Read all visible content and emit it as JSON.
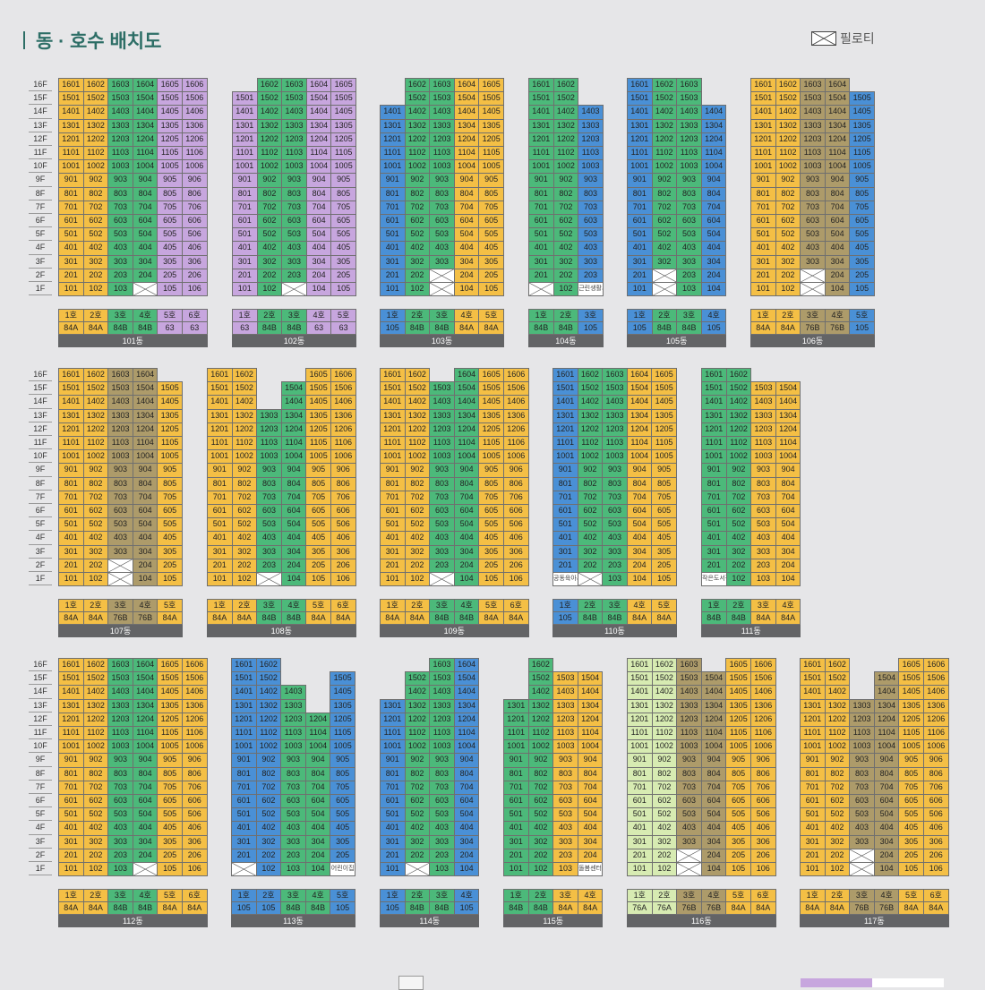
{
  "title": "동 · 호수 배치도",
  "legend": {
    "pilotis_label": "필로티",
    "pilotis_icon": "crossed-box-icon"
  },
  "colors": {
    "Y": "#f4bf45",
    "G": "#4cb97a",
    "B": "#4a90d6",
    "P": "#c7a6de",
    "K": "#ad9b6a",
    "L": "#d7ebb2"
  },
  "floors": [
    "16F",
    "15F",
    "14F",
    "13F",
    "12F",
    "11F",
    "10F",
    "9F",
    "8F",
    "7F",
    "6F",
    "5F",
    "4F",
    "3F",
    "2F",
    "1F"
  ],
  "buildings": [
    {
      "name": "101동",
      "cols": 6,
      "lines": [
        {
          "label": "1호",
          "type": "84A",
          "color": "Y",
          "top": 16
        },
        {
          "label": "2호",
          "type": "84A",
          "color": "Y",
          "top": 16
        },
        {
          "label": "3호",
          "type": "84B",
          "color": "G",
          "top": 16
        },
        {
          "label": "4호",
          "type": "84B",
          "color": "G",
          "top": 16
        },
        {
          "label": "5호",
          "type": "63",
          "color": "P",
          "top": 16
        },
        {
          "label": "6호",
          "type": "63",
          "color": "P",
          "top": 16
        }
      ],
      "special": {}
    },
    {
      "name": "102동",
      "cols": 5,
      "lines": [
        {
          "label": "1호",
          "type": "63",
          "color": "P",
          "top": 15
        },
        {
          "label": "2호",
          "type": "84B",
          "color": "G",
          "top": 16
        },
        {
          "label": "3호",
          "type": "84B",
          "color": "G",
          "top": 16
        },
        {
          "label": "4호",
          "type": "63",
          "color": "P",
          "top": 16
        },
        {
          "label": "5호",
          "type": "63",
          "color": "P",
          "top": 16
        }
      ],
      "special": {}
    },
    {
      "name": "103동",
      "cols": 5,
      "lines": [
        {
          "label": "1호",
          "type": "105",
          "color": "B",
          "top": 14
        },
        {
          "label": "2호",
          "type": "84B",
          "color": "G",
          "top": 16
        },
        {
          "label": "3호",
          "type": "84B",
          "color": "G",
          "top": 16
        },
        {
          "label": "4호",
          "type": "84A",
          "color": "Y",
          "top": 16
        },
        {
          "label": "5호",
          "type": "84A",
          "color": "Y",
          "top": 16
        }
      ],
      "special": {}
    },
    {
      "name": "104동",
      "cols": 3,
      "lines": [
        {
          "label": "1호",
          "type": "84B",
          "color": "G",
          "top": 16
        },
        {
          "label": "2호",
          "type": "84B",
          "color": "G",
          "top": 16
        },
        {
          "label": "3호",
          "type": "105",
          "color": "B",
          "top": 14
        }
      ],
      "special": {}
    },
    {
      "name": "105동",
      "cols": 4,
      "lines": [
        {
          "label": "1호",
          "type": "105",
          "color": "B",
          "top": 16
        },
        {
          "label": "2호",
          "type": "84B",
          "color": "G",
          "top": 16
        },
        {
          "label": "3호",
          "type": "84B",
          "color": "G",
          "top": 16
        },
        {
          "label": "4호",
          "type": "105",
          "color": "B",
          "top": 14
        }
      ],
      "special": {}
    },
    {
      "name": "106동",
      "cols": 5,
      "lines": [
        {
          "label": "1호",
          "type": "84A",
          "color": "Y",
          "top": 16
        },
        {
          "label": "2호",
          "type": "84A",
          "color": "Y",
          "top": 16
        },
        {
          "label": "3호",
          "type": "76B",
          "color": "K",
          "top": 16
        },
        {
          "label": "4호",
          "type": "76B",
          "color": "K",
          "top": 16
        },
        {
          "label": "5호",
          "type": "105",
          "color": "B",
          "top": 15
        }
      ],
      "special": {}
    },
    {
      "name": "107동",
      "cols": 5,
      "lines": [
        {
          "label": "1호",
          "type": "84A",
          "color": "Y",
          "top": 16
        },
        {
          "label": "2호",
          "type": "84A",
          "color": "Y",
          "top": 16
        },
        {
          "label": "3호",
          "type": "76B",
          "color": "K",
          "top": 16
        },
        {
          "label": "4호",
          "type": "76B",
          "color": "K",
          "top": 16
        },
        {
          "label": "5호",
          "type": "84A",
          "color": "Y",
          "top": 15
        }
      ],
      "special": {}
    },
    {
      "name": "108동",
      "cols": 6,
      "lines": [
        {
          "label": "1호",
          "type": "84A",
          "color": "Y",
          "top": 16
        },
        {
          "label": "2호",
          "type": "84A",
          "color": "Y",
          "top": 16
        },
        {
          "label": "3호",
          "type": "84B",
          "color": "G",
          "top": 13
        },
        {
          "label": "4호",
          "type": "84B",
          "color": "G",
          "top": 15
        },
        {
          "label": "5호",
          "type": "84A",
          "color": "Y",
          "top": 16
        },
        {
          "label": "6호",
          "type": "84A",
          "color": "Y",
          "top": 16
        }
      ],
      "special": {}
    },
    {
      "name": "109동",
      "cols": 6,
      "lines": [
        {
          "label": "1호",
          "type": "84A",
          "color": "Y",
          "top": 16
        },
        {
          "label": "2호",
          "type": "84A",
          "color": "Y",
          "top": 16
        },
        {
          "label": "3호",
          "type": "84B",
          "color": "G",
          "top": 15
        },
        {
          "label": "4호",
          "type": "84B",
          "color": "G",
          "top": 16
        },
        {
          "label": "5호",
          "type": "84A",
          "color": "Y",
          "top": 16
        },
        {
          "label": "6호",
          "type": "84A",
          "color": "Y",
          "top": 16
        }
      ],
      "special": {}
    },
    {
      "name": "110동",
      "cols": 5,
      "lines": [
        {
          "label": "1호",
          "type": "105",
          "color": "B",
          "top": 16
        },
        {
          "label": "2호",
          "type": "84B",
          "color": "G",
          "top": 16
        },
        {
          "label": "3호",
          "type": "84B",
          "color": "G",
          "top": 16
        },
        {
          "label": "4호",
          "type": "84A",
          "color": "Y",
          "top": 16
        },
        {
          "label": "5호",
          "type": "84A",
          "color": "Y",
          "top": 16
        }
      ],
      "special": {}
    },
    {
      "name": "111동",
      "cols": 4,
      "lines": [
        {
          "label": "1호",
          "type": "84B",
          "color": "G",
          "top": 16
        },
        {
          "label": "2호",
          "type": "84B",
          "color": "G",
          "top": 16
        },
        {
          "label": "3호",
          "type": "84A",
          "color": "Y",
          "top": 15
        },
        {
          "label": "4호",
          "type": "84A",
          "color": "Y",
          "top": 15
        }
      ],
      "special": {}
    },
    {
      "name": "112동",
      "cols": 6,
      "lines": [
        {
          "label": "1호",
          "type": "84A",
          "color": "Y",
          "top": 16
        },
        {
          "label": "2호",
          "type": "84A",
          "color": "Y",
          "top": 16
        },
        {
          "label": "3호",
          "type": "84B",
          "color": "G",
          "top": 16
        },
        {
          "label": "4호",
          "type": "84B",
          "color": "G",
          "top": 16
        },
        {
          "label": "5호",
          "type": "84A",
          "color": "Y",
          "top": 16
        },
        {
          "label": "6호",
          "type": "84A",
          "color": "Y",
          "top": 16
        }
      ],
      "special": {}
    },
    {
      "name": "113동",
      "cols": 5,
      "lines": [
        {
          "label": "1호",
          "type": "105",
          "color": "B",
          "top": 16
        },
        {
          "label": "2호",
          "type": "105",
          "color": "B",
          "top": 16
        },
        {
          "label": "3호",
          "type": "84B",
          "color": "G",
          "top": 14
        },
        {
          "label": "4호",
          "type": "84B",
          "color": "G",
          "top": 12
        },
        {
          "label": "5호",
          "type": "105",
          "color": "B",
          "top": 15
        }
      ],
      "special": {}
    },
    {
      "name": "114동",
      "cols": 4,
      "lines": [
        {
          "label": "1호",
          "type": "105",
          "color": "B",
          "top": 13
        },
        {
          "label": "2호",
          "type": "84B",
          "color": "G",
          "top": 15
        },
        {
          "label": "3호",
          "type": "84B",
          "color": "G",
          "top": 16
        },
        {
          "label": "4호",
          "type": "105",
          "color": "B",
          "top": 16
        }
      ],
      "special": {}
    },
    {
      "name": "115동",
      "cols": 4,
      "lines": [
        {
          "label": "1호",
          "type": "84B",
          "color": "G",
          "top": 13
        },
        {
          "label": "2호",
          "type": "84B",
          "color": "G",
          "top": 16
        },
        {
          "label": "3호",
          "type": "84A",
          "color": "Y",
          "top": 15
        },
        {
          "label": "4호",
          "type": "84A",
          "color": "Y",
          "top": 15
        }
      ],
      "special": {}
    },
    {
      "name": "116동",
      "cols": 6,
      "lines": [
        {
          "label": "1호",
          "type": "76A",
          "color": "L",
          "top": 16
        },
        {
          "label": "2호",
          "type": "76A",
          "color": "L",
          "top": 16
        },
        {
          "label": "3호",
          "type": "76B",
          "color": "K",
          "top": 16
        },
        {
          "label": "4호",
          "type": "76B",
          "color": "K",
          "top": 15
        },
        {
          "label": "5호",
          "type": "84A",
          "color": "Y",
          "top": 16
        },
        {
          "label": "6호",
          "type": "84A",
          "color": "Y",
          "top": 16
        }
      ],
      "special": {}
    },
    {
      "name": "117동",
      "cols": 6,
      "lines": [
        {
          "label": "1호",
          "type": "84A",
          "color": "Y",
          "top": 16
        },
        {
          "label": "2호",
          "type": "84A",
          "color": "Y",
          "top": 16
        },
        {
          "label": "3호",
          "type": "76B",
          "color": "K",
          "top": 13
        },
        {
          "label": "4호",
          "type": "76B",
          "color": "K",
          "top": 15
        },
        {
          "label": "5호",
          "type": "84A",
          "color": "Y",
          "top": 16
        },
        {
          "label": "6호",
          "type": "84A",
          "color": "Y",
          "top": 16
        }
      ],
      "special": {}
    }
  ],
  "pilotis": {
    "101동": [
      "104"
    ],
    "102동": [
      "103"
    ],
    "103동": [
      "203",
      "103"
    ],
    "104동": [
      "101"
    ],
    "105동": [
      "202",
      "102"
    ],
    "106동": [
      "203",
      "103"
    ],
    "107동": [
      "203",
      "103"
    ],
    "108동": [
      "103"
    ],
    "109동": [
      "103"
    ],
    "110동": [
      "102"
    ],
    "111동": [],
    "112동": [
      "104"
    ],
    "113동": [
      "101"
    ],
    "114동": [
      "102"
    ],
    "115동": [],
    "116동": [
      "203",
      "103"
    ],
    "117동": [
      "203",
      "103"
    ]
  },
  "facilities": {
    "104동": {
      "103": "근린생활시설"
    },
    "110동": {
      "101": "공동육아시설"
    },
    "111동": {
      "101": "작은도서관"
    },
    "113동": {
      "105": "어린이집"
    },
    "115동": {
      "104": "돌봄센터"
    }
  }
}
